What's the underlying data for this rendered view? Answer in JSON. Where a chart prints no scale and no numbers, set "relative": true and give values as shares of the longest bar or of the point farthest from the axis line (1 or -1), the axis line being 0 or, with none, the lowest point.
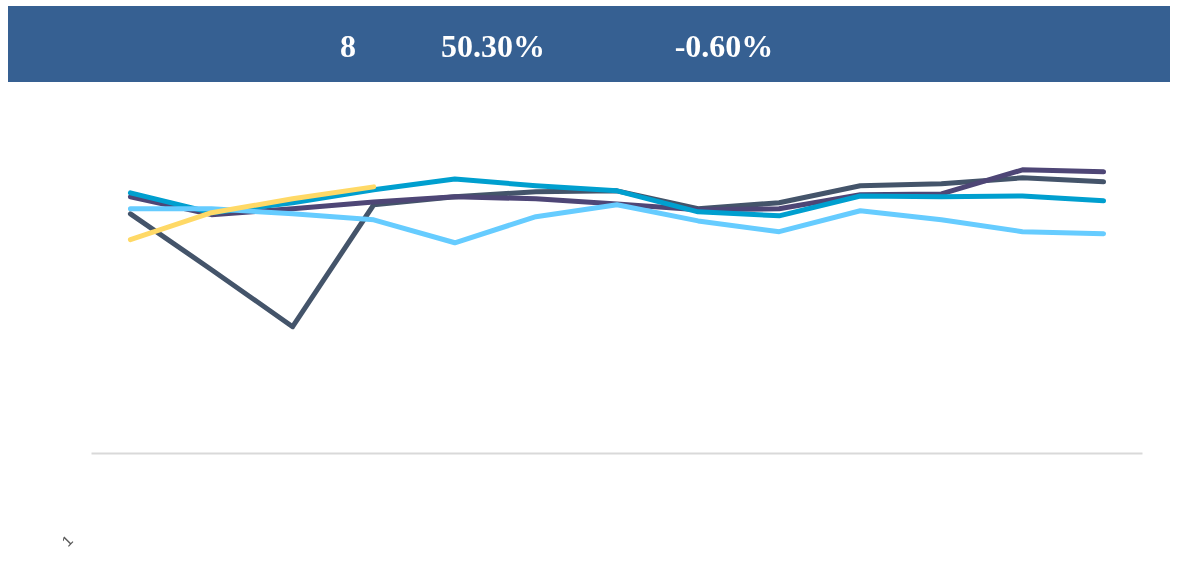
{
  "chart_data": {
    "type": "line",
    "relative": true,
    "grid": false,
    "marker": "none",
    "line_style": "solid",
    "categories": [
      null,
      null,
      null,
      null,
      null,
      null,
      null,
      null,
      null,
      null,
      null,
      null,
      null
    ],
    "annotations": [
      "8",
      "50.30%",
      "-0.60%",
      "1"
    ],
    "series": [
      {
        "color": "#44546a",
        "values": [
          0.845,
          0.648,
          0.447,
          0.877,
          0.905,
          0.923,
          0.926,
          0.863,
          0.884,
          0.944,
          0.951,
          0.972,
          0.958
        ]
      },
      {
        "color": "#4e4676",
        "values": [
          0.905,
          0.842,
          0.863,
          0.887,
          0.905,
          0.898,
          0.88,
          0.859,
          0.863,
          0.912,
          0.915,
          1.0,
          0.993
        ]
      },
      {
        "color": "#009fcf",
        "values": [
          0.919,
          0.849,
          0.884,
          0.93,
          0.968,
          0.944,
          0.926,
          0.852,
          0.838,
          0.908,
          0.905,
          0.908,
          0.891
        ]
      },
      {
        "color": "#66ccff",
        "values": [
          0.863,
          0.863,
          0.845,
          0.824,
          0.743,
          0.835,
          0.877,
          0.82,
          0.782,
          0.856,
          0.824,
          0.782,
          0.775
        ]
      },
      {
        "color": "#ffd966",
        "values": [
          0.754,
          0.849,
          0.898,
          0.94,
          null,
          null,
          null,
          null,
          null,
          null,
          null,
          null,
          null
        ]
      }
    ]
  }
}
